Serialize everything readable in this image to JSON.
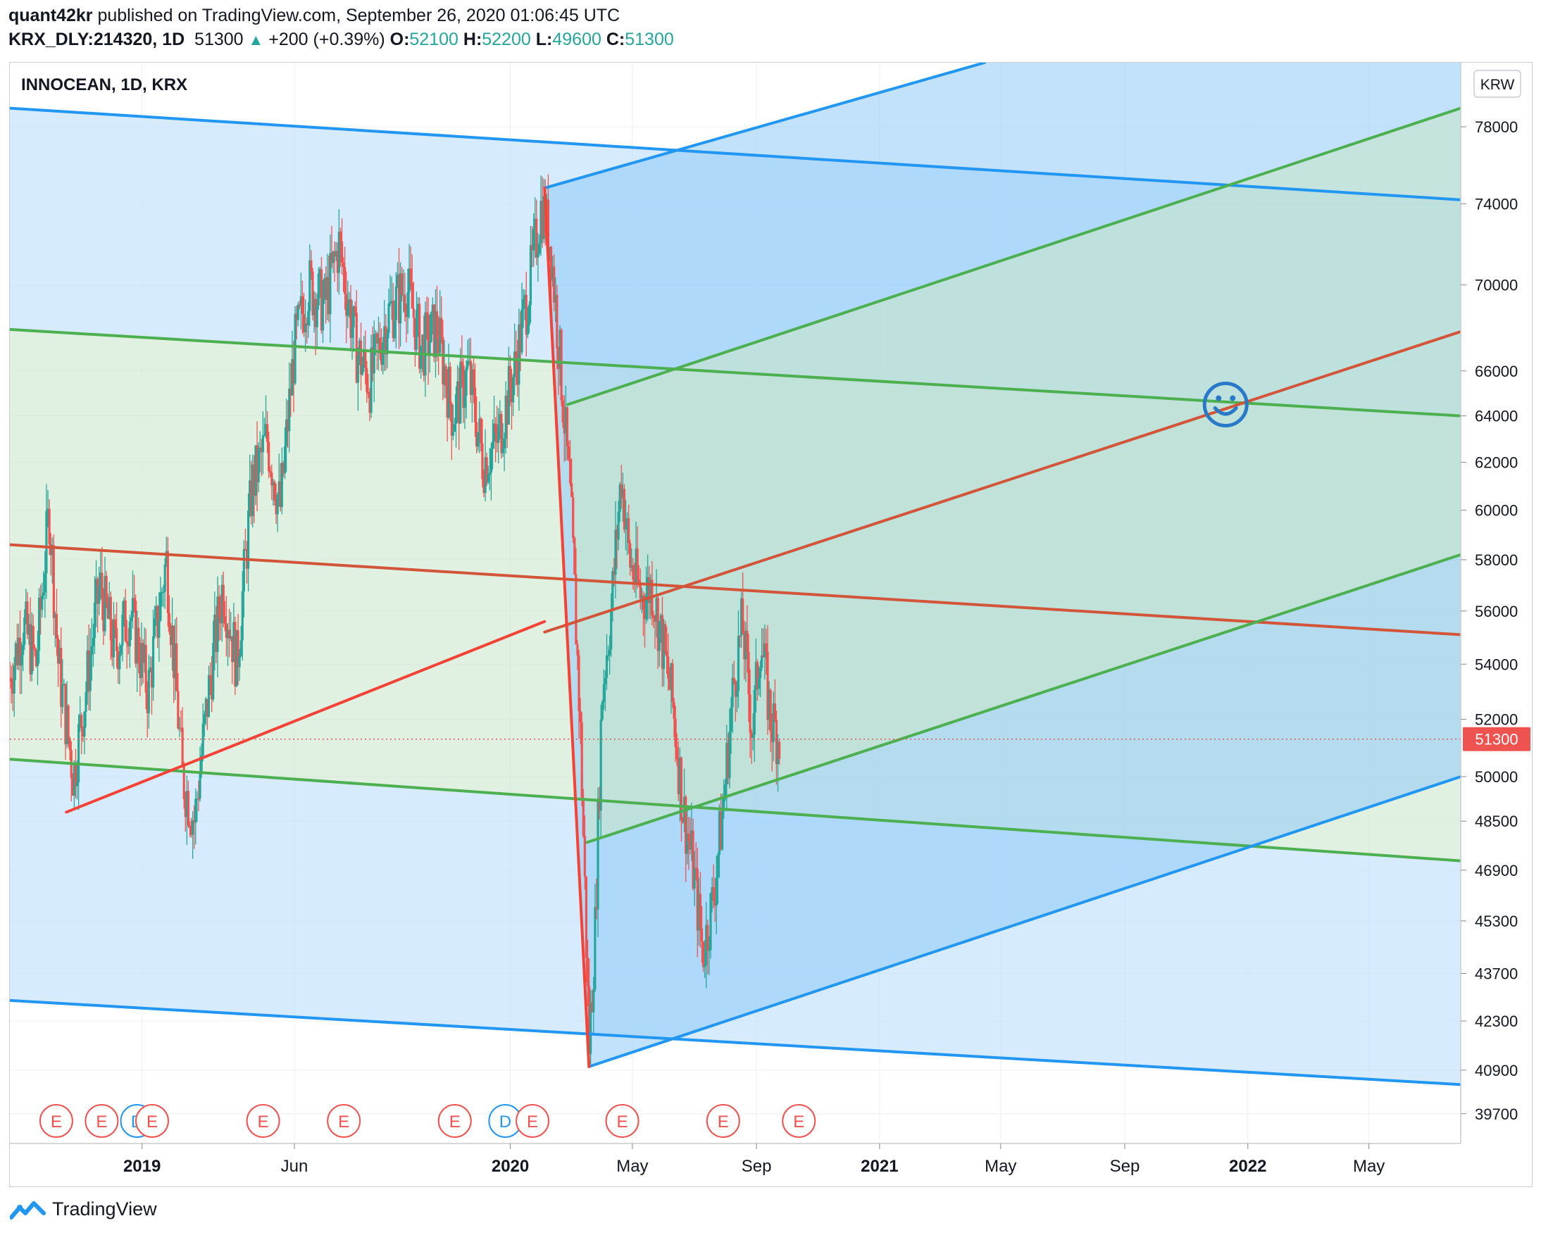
{
  "header": {
    "author": "quant42kr",
    "published_text": "published on TradingView.com, September 26, 2020 01:06:45 UTC",
    "symbol": "KRX_DLY:214320, 1D",
    "last": "51300",
    "change": "+200 (+0.39%)",
    "open_label": "O:",
    "open": "52100",
    "high_label": "H:",
    "high": "52200",
    "low_label": "L:",
    "low": "49600",
    "close_label": "C:",
    "close": "51300"
  },
  "footer": {
    "brand": "TradingView"
  },
  "chart_data": {
    "type": "candlestick",
    "title": "INNOCEAN, 1D, KRX",
    "currency_badge": "KRW",
    "y_scale": "log",
    "ylim": [
      38900,
      81500
    ],
    "xlim": [
      "2018-08-23",
      "2022-07-31"
    ],
    "y_ticks": [
      78000,
      74000,
      70000,
      66000,
      64000,
      62000,
      60000,
      58000,
      56000,
      54000,
      52000,
      50000,
      48500,
      46900,
      45300,
      43700,
      42300,
      40900,
      39700
    ],
    "x_ticks": [
      {
        "label": "2019",
        "date": "2019-01-01"
      },
      {
        "label": "Jun",
        "date": "2019-06-01"
      },
      {
        "label": "2020",
        "date": "2020-01-01"
      },
      {
        "label": "May",
        "date": "2020-05-01"
      },
      {
        "label": "Sep",
        "date": "2020-09-01"
      },
      {
        "label": "2021",
        "date": "2021-01-01"
      },
      {
        "label": "May",
        "date": "2021-05-01"
      },
      {
        "label": "Sep",
        "date": "2021-09-01"
      },
      {
        "label": "2022",
        "date": "2022-01-01"
      },
      {
        "label": "May",
        "date": "2022-05-01"
      }
    ],
    "last_price_label": "51300",
    "last_price": 51300,
    "colors": {
      "up": "#26a69a",
      "down": "#ef5350",
      "blue_line": "#2196f3",
      "blue_fill": "#bbdefb",
      "green_line": "#4caf50",
      "green_fill": "#c8e6c9",
      "median_line": "#d2553a",
      "handle_line": "#f44336"
    },
    "price_path": [
      {
        "date": "2018-08-23",
        "price": 53500
      },
      {
        "date": "2018-09-05",
        "price": 55500
      },
      {
        "date": "2018-09-18",
        "price": 54000
      },
      {
        "date": "2018-10-01",
        "price": 60000
      },
      {
        "date": "2018-10-10",
        "price": 54000
      },
      {
        "date": "2018-10-25",
        "price": 50000
      },
      {
        "date": "2018-11-06",
        "price": 53000
      },
      {
        "date": "2018-11-20",
        "price": 57000
      },
      {
        "date": "2018-12-05",
        "price": 54500
      },
      {
        "date": "2018-12-20",
        "price": 56000
      },
      {
        "date": "2019-01-07",
        "price": 53000
      },
      {
        "date": "2019-01-25",
        "price": 58000
      },
      {
        "date": "2019-02-10",
        "price": 50000
      },
      {
        "date": "2019-02-22",
        "price": 48500
      },
      {
        "date": "2019-03-08",
        "price": 53000
      },
      {
        "date": "2019-03-22",
        "price": 57000
      },
      {
        "date": "2019-04-05",
        "price": 54000
      },
      {
        "date": "2019-04-20",
        "price": 61000
      },
      {
        "date": "2019-05-05",
        "price": 63000
      },
      {
        "date": "2019-05-18",
        "price": 60000
      },
      {
        "date": "2019-06-01",
        "price": 67000
      },
      {
        "date": "2019-06-15",
        "price": 70000
      },
      {
        "date": "2019-07-01",
        "price": 69000
      },
      {
        "date": "2019-07-15",
        "price": 72000
      },
      {
        "date": "2019-08-01",
        "price": 67000
      },
      {
        "date": "2019-08-15",
        "price": 65500
      },
      {
        "date": "2019-09-01",
        "price": 68500
      },
      {
        "date": "2019-09-20",
        "price": 70000
      },
      {
        "date": "2019-10-05",
        "price": 67000
      },
      {
        "date": "2019-10-20",
        "price": 68000
      },
      {
        "date": "2019-11-05",
        "price": 64000
      },
      {
        "date": "2019-11-20",
        "price": 66000
      },
      {
        "date": "2019-12-05",
        "price": 62000
      },
      {
        "date": "2019-12-20",
        "price": 63000
      },
      {
        "date": "2020-01-05",
        "price": 66000
      },
      {
        "date": "2020-01-20",
        "price": 70000
      },
      {
        "date": "2020-02-01",
        "price": 74000
      },
      {
        "date": "2020-02-10",
        "price": 72000
      },
      {
        "date": "2020-02-20",
        "price": 66000
      },
      {
        "date": "2020-03-01",
        "price": 60000
      },
      {
        "date": "2020-03-10",
        "price": 52000
      },
      {
        "date": "2020-03-19",
        "price": 41500
      },
      {
        "date": "2020-03-25",
        "price": 45000
      },
      {
        "date": "2020-04-01",
        "price": 53000
      },
      {
        "date": "2020-04-10",
        "price": 56000
      },
      {
        "date": "2020-04-20",
        "price": 61500
      },
      {
        "date": "2020-04-28",
        "price": 58000
      },
      {
        "date": "2020-05-10",
        "price": 56500
      },
      {
        "date": "2020-05-20",
        "price": 57000
      },
      {
        "date": "2020-06-01",
        "price": 54500
      },
      {
        "date": "2020-06-10",
        "price": 52500
      },
      {
        "date": "2020-06-20",
        "price": 49000
      },
      {
        "date": "2020-06-30",
        "price": 47000
      },
      {
        "date": "2020-07-10",
        "price": 44300
      },
      {
        "date": "2020-07-20",
        "price": 46000
      },
      {
        "date": "2020-07-30",
        "price": 49000
      },
      {
        "date": "2020-08-10",
        "price": 53500
      },
      {
        "date": "2020-08-18",
        "price": 55500
      },
      {
        "date": "2020-08-28",
        "price": 51500
      },
      {
        "date": "2020-09-05",
        "price": 55000
      },
      {
        "date": "2020-09-15",
        "price": 52000
      },
      {
        "date": "2020-09-25",
        "price": 51300
      }
    ],
    "pitchforks": [
      {
        "name": "down-fork",
        "color": "#2196f3",
        "zones": [
          {
            "line": "upper",
            "fill": "#bbdefb",
            "upper": [
              {
                "date": "2018-08-23",
                "price": 79000
              },
              {
                "date": "2022-07-31",
                "price": 74200
              }
            ],
            "lower": [
              {
                "date": "2018-08-23",
                "price": 67900
              },
              {
                "date": "2022-07-31",
                "price": 64000
              }
            ]
          },
          {
            "line": "lower",
            "fill": "#bbdefb",
            "upper": [
              {
                "date": "2018-08-23",
                "price": 50600
              },
              {
                "date": "2022-07-31",
                "price": 47200
              }
            ],
            "lower": [
              {
                "date": "2018-08-23",
                "price": 42900
              },
              {
                "date": "2022-07-31",
                "price": 40500
              }
            ]
          }
        ],
        "green_zone": {
          "upper": [
            {
              "date": "2018-08-23",
              "price": 67900
            },
            {
              "date": "2022-07-31",
              "price": 64000
            }
          ],
          "lower": [
            {
              "date": "2018-08-23",
              "price": 50600
            },
            {
              "date": "2022-07-31",
              "price": 47200
            }
          ]
        },
        "median": [
          {
            "date": "2018-08-23",
            "price": 58600
          },
          {
            "date": "2022-07-31",
            "price": 55100
          }
        ]
      },
      {
        "name": "up-fork",
        "color": "#2196f3",
        "blue_upper": [
          {
            "date": "2020-02-04",
            "price": 74800
          },
          {
            "date": "2021-04-15",
            "price": 81500
          }
        ],
        "blue_lower": [
          {
            "date": "2020-03-19",
            "price": 41000
          },
          {
            "date": "2022-07-31",
            "price": 50000
          }
        ],
        "green_upper": [
          {
            "date": "2020-02-27",
            "price": 64500
          },
          {
            "date": "2022-07-31",
            "price": 79000
          }
        ],
        "green_lower": [
          {
            "date": "2020-03-17",
            "price": 47800
          },
          {
            "date": "2022-07-31",
            "price": 58200
          }
        ],
        "median": [
          {
            "date": "2020-02-04",
            "price": 55200
          },
          {
            "date": "2022-07-31",
            "price": 67800
          }
        ]
      }
    ],
    "handles": [
      [
        {
          "date": "2018-10-18",
          "price": 48800
        },
        {
          "date": "2020-02-04",
          "price": 55600
        }
      ],
      [
        {
          "date": "2020-02-04",
          "price": 74800
        },
        {
          "date": "2020-03-19",
          "price": 41000
        }
      ]
    ],
    "smiley": {
      "date": "2021-12-10",
      "price": 64500
    },
    "event_markers": [
      {
        "label": "E",
        "date": "2018-10-08"
      },
      {
        "label": "E",
        "date": "2018-11-22"
      },
      {
        "label": "D",
        "date": "2018-12-27"
      },
      {
        "label": "E",
        "date": "2019-01-11"
      },
      {
        "label": "E",
        "date": "2019-05-01"
      },
      {
        "label": "E",
        "date": "2019-07-20"
      },
      {
        "label": "E",
        "date": "2019-11-07"
      },
      {
        "label": "D",
        "date": "2019-12-27"
      },
      {
        "label": "E",
        "date": "2020-01-23"
      },
      {
        "label": "E",
        "date": "2020-04-21"
      },
      {
        "label": "E",
        "date": "2020-07-30"
      },
      {
        "label": "E",
        "date": "2020-10-13"
      }
    ]
  }
}
